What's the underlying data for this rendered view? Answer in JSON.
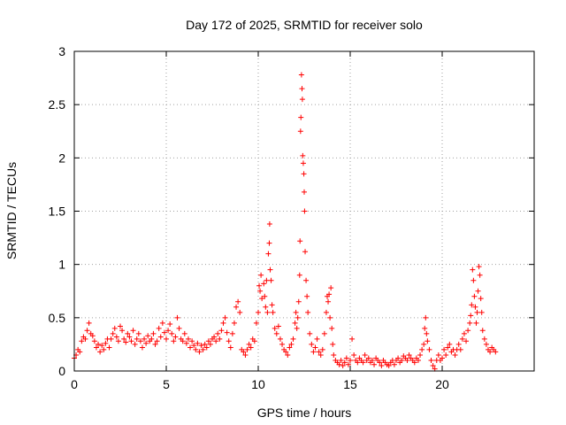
{
  "chart_data": {
    "type": "scatter",
    "title": "Day 172 of 2025, SRMTID for receiver solo",
    "xlabel": "GPS time / hours",
    "ylabel": "SRMTID / TECUs",
    "xlim": [
      0,
      25
    ],
    "ylim": [
      0,
      3
    ],
    "xticks": [
      0,
      5,
      10,
      15,
      20
    ],
    "yticks": [
      0,
      0.5,
      1,
      1.5,
      2,
      2.5,
      3
    ],
    "xtick_labels": [
      "0",
      "5",
      "10",
      "15",
      "20"
    ],
    "ytick_labels": [
      "0",
      "0.5",
      "1",
      "1.5",
      "2",
      "2.5",
      "3"
    ],
    "grid": true,
    "marker": "plus",
    "color": "#ff0000",
    "series": [
      {
        "name": "SRMTID",
        "points": [
          [
            0.0,
            0.12
          ],
          [
            0.1,
            0.15
          ],
          [
            0.2,
            0.2
          ],
          [
            0.3,
            0.18
          ],
          [
            0.4,
            0.28
          ],
          [
            0.5,
            0.32
          ],
          [
            0.6,
            0.3
          ],
          [
            0.7,
            0.38
          ],
          [
            0.8,
            0.45
          ],
          [
            0.9,
            0.35
          ],
          [
            1.0,
            0.33
          ],
          [
            1.1,
            0.28
          ],
          [
            1.2,
            0.22
          ],
          [
            1.3,
            0.25
          ],
          [
            1.4,
            0.18
          ],
          [
            1.5,
            0.24
          ],
          [
            1.6,
            0.2
          ],
          [
            1.7,
            0.26
          ],
          [
            1.8,
            0.3
          ],
          [
            1.9,
            0.22
          ],
          [
            2.0,
            0.3
          ],
          [
            2.1,
            0.35
          ],
          [
            2.2,
            0.4
          ],
          [
            2.3,
            0.32
          ],
          [
            2.4,
            0.28
          ],
          [
            2.5,
            0.42
          ],
          [
            2.6,
            0.38
          ],
          [
            2.7,
            0.3
          ],
          [
            2.8,
            0.27
          ],
          [
            2.9,
            0.35
          ],
          [
            3.0,
            0.32
          ],
          [
            3.1,
            0.28
          ],
          [
            3.2,
            0.38
          ],
          [
            3.3,
            0.25
          ],
          [
            3.4,
            0.3
          ],
          [
            3.5,
            0.35
          ],
          [
            3.6,
            0.28
          ],
          [
            3.7,
            0.22
          ],
          [
            3.8,
            0.3
          ],
          [
            3.9,
            0.26
          ],
          [
            4.0,
            0.33
          ],
          [
            4.1,
            0.28
          ],
          [
            4.2,
            0.3
          ],
          [
            4.3,
            0.35
          ],
          [
            4.4,
            0.25
          ],
          [
            4.5,
            0.28
          ],
          [
            4.6,
            0.4
          ],
          [
            4.7,
            0.32
          ],
          [
            4.8,
            0.45
          ],
          [
            4.9,
            0.36
          ],
          [
            5.0,
            0.3
          ],
          [
            5.1,
            0.38
          ],
          [
            5.2,
            0.44
          ],
          [
            5.3,
            0.35
          ],
          [
            5.4,
            0.28
          ],
          [
            5.5,
            0.32
          ],
          [
            5.6,
            0.5
          ],
          [
            5.7,
            0.4
          ],
          [
            5.8,
            0.3
          ],
          [
            5.9,
            0.28
          ],
          [
            6.0,
            0.35
          ],
          [
            6.1,
            0.26
          ],
          [
            6.2,
            0.3
          ],
          [
            6.3,
            0.22
          ],
          [
            6.4,
            0.28
          ],
          [
            6.5,
            0.24
          ],
          [
            6.6,
            0.2
          ],
          [
            6.7,
            0.26
          ],
          [
            6.8,
            0.18
          ],
          [
            6.9,
            0.24
          ],
          [
            7.0,
            0.2
          ],
          [
            7.1,
            0.25
          ],
          [
            7.2,
            0.22
          ],
          [
            7.3,
            0.28
          ],
          [
            7.4,
            0.25
          ],
          [
            7.5,
            0.3
          ],
          [
            7.6,
            0.32
          ],
          [
            7.7,
            0.28
          ],
          [
            7.8,
            0.35
          ],
          [
            7.9,
            0.3
          ],
          [
            8.0,
            0.38
          ],
          [
            8.1,
            0.45
          ],
          [
            8.2,
            0.5
          ],
          [
            8.3,
            0.36
          ],
          [
            8.4,
            0.28
          ],
          [
            8.5,
            0.22
          ],
          [
            8.6,
            0.35
          ],
          [
            8.7,
            0.45
          ],
          [
            8.8,
            0.6
          ],
          [
            8.9,
            0.65
          ],
          [
            9.0,
            0.55
          ],
          [
            9.1,
            0.2
          ],
          [
            9.2,
            0.18
          ],
          [
            9.3,
            0.15
          ],
          [
            9.4,
            0.2
          ],
          [
            9.5,
            0.25
          ],
          [
            9.6,
            0.22
          ],
          [
            9.7,
            0.3
          ],
          [
            9.8,
            0.28
          ],
          [
            9.9,
            0.45
          ],
          [
            10.0,
            0.55
          ],
          [
            10.05,
            0.8
          ],
          [
            10.1,
            0.75
          ],
          [
            10.15,
            0.9
          ],
          [
            10.2,
            0.68
          ],
          [
            10.3,
            0.82
          ],
          [
            10.35,
            0.7
          ],
          [
            10.4,
            0.6
          ],
          [
            10.45,
            0.85
          ],
          [
            10.5,
            0.55
          ],
          [
            10.55,
            1.1
          ],
          [
            10.6,
            1.2
          ],
          [
            10.62,
            1.38
          ],
          [
            10.65,
            0.95
          ],
          [
            10.7,
            0.85
          ],
          [
            10.75,
            0.62
          ],
          [
            10.8,
            0.55
          ],
          [
            10.9,
            0.4
          ],
          [
            11.0,
            0.35
          ],
          [
            11.1,
            0.42
          ],
          [
            11.2,
            0.3
          ],
          [
            11.3,
            0.25
          ],
          [
            11.4,
            0.2
          ],
          [
            11.5,
            0.18
          ],
          [
            11.6,
            0.15
          ],
          [
            11.7,
            0.22
          ],
          [
            11.8,
            0.25
          ],
          [
            11.9,
            0.3
          ],
          [
            12.0,
            0.45
          ],
          [
            12.05,
            0.55
          ],
          [
            12.1,
            0.4
          ],
          [
            12.15,
            0.5
          ],
          [
            12.2,
            0.65
          ],
          [
            12.25,
            0.9
          ],
          [
            12.27,
            1.22
          ],
          [
            12.3,
            2.25
          ],
          [
            12.32,
            2.38
          ],
          [
            12.35,
            2.78
          ],
          [
            12.38,
            2.65
          ],
          [
            12.4,
            2.55
          ],
          [
            12.42,
            2.02
          ],
          [
            12.45,
            1.95
          ],
          [
            12.48,
            1.85
          ],
          [
            12.5,
            1.68
          ],
          [
            12.52,
            1.5
          ],
          [
            12.55,
            1.12
          ],
          [
            12.6,
            0.85
          ],
          [
            12.65,
            0.7
          ],
          [
            12.7,
            0.55
          ],
          [
            12.8,
            0.35
          ],
          [
            12.9,
            0.25
          ],
          [
            13.0,
            0.18
          ],
          [
            13.1,
            0.22
          ],
          [
            13.2,
            0.3
          ],
          [
            13.3,
            0.18
          ],
          [
            13.4,
            0.15
          ],
          [
            13.5,
            0.2
          ],
          [
            13.6,
            0.35
          ],
          [
            13.7,
            0.55
          ],
          [
            13.75,
            0.7
          ],
          [
            13.8,
            0.65
          ],
          [
            13.85,
            0.72
          ],
          [
            13.9,
            0.5
          ],
          [
            13.95,
            0.78
          ],
          [
            14.0,
            0.4
          ],
          [
            14.05,
            0.25
          ],
          [
            14.1,
            0.15
          ],
          [
            14.2,
            0.1
          ],
          [
            14.3,
            0.08
          ],
          [
            14.4,
            0.06
          ],
          [
            14.5,
            0.1
          ],
          [
            14.6,
            0.05
          ],
          [
            14.7,
            0.08
          ],
          [
            14.8,
            0.12
          ],
          [
            14.9,
            0.06
          ],
          [
            15.0,
            0.1
          ],
          [
            15.1,
            0.3
          ],
          [
            15.2,
            0.15
          ],
          [
            15.3,
            0.1
          ],
          [
            15.4,
            0.08
          ],
          [
            15.5,
            0.12
          ],
          [
            15.6,
            0.1
          ],
          [
            15.7,
            0.08
          ],
          [
            15.8,
            0.15
          ],
          [
            15.9,
            0.1
          ],
          [
            16.0,
            0.12
          ],
          [
            16.1,
            0.08
          ],
          [
            16.2,
            0.1
          ],
          [
            16.3,
            0.06
          ],
          [
            16.4,
            0.12
          ],
          [
            16.5,
            0.1
          ],
          [
            16.6,
            0.08
          ],
          [
            16.7,
            0.05
          ],
          [
            16.8,
            0.1
          ],
          [
            16.9,
            0.08
          ],
          [
            17.0,
            0.06
          ],
          [
            17.1,
            0.05
          ],
          [
            17.2,
            0.08
          ],
          [
            17.3,
            0.1
          ],
          [
            17.4,
            0.06
          ],
          [
            17.5,
            0.1
          ],
          [
            17.6,
            0.12
          ],
          [
            17.7,
            0.08
          ],
          [
            17.8,
            0.1
          ],
          [
            17.9,
            0.14
          ],
          [
            18.0,
            0.12
          ],
          [
            18.1,
            0.1
          ],
          [
            18.2,
            0.15
          ],
          [
            18.3,
            0.12
          ],
          [
            18.4,
            0.1
          ],
          [
            18.5,
            0.08
          ],
          [
            18.6,
            0.12
          ],
          [
            18.7,
            0.1
          ],
          [
            18.8,
            0.15
          ],
          [
            18.9,
            0.2
          ],
          [
            19.0,
            0.25
          ],
          [
            19.05,
            0.4
          ],
          [
            19.1,
            0.5
          ],
          [
            19.15,
            0.35
          ],
          [
            19.2,
            0.28
          ],
          [
            19.3,
            0.2
          ],
          [
            19.4,
            0.1
          ],
          [
            19.5,
            0.05
          ],
          [
            19.6,
            0.02
          ],
          [
            19.7,
            0.1
          ],
          [
            19.8,
            0.15
          ],
          [
            19.9,
            0.1
          ],
          [
            20.0,
            0.12
          ],
          [
            20.1,
            0.2
          ],
          [
            20.2,
            0.15
          ],
          [
            20.3,
            0.22
          ],
          [
            20.4,
            0.25
          ],
          [
            20.5,
            0.18
          ],
          [
            20.6,
            0.2
          ],
          [
            20.7,
            0.15
          ],
          [
            20.8,
            0.2
          ],
          [
            20.9,
            0.25
          ],
          [
            21.0,
            0.2
          ],
          [
            21.1,
            0.3
          ],
          [
            21.2,
            0.35
          ],
          [
            21.3,
            0.28
          ],
          [
            21.4,
            0.38
          ],
          [
            21.5,
            0.45
          ],
          [
            21.55,
            0.52
          ],
          [
            21.6,
            0.62
          ],
          [
            21.65,
            0.95
          ],
          [
            21.7,
            0.85
          ],
          [
            21.75,
            0.7
          ],
          [
            21.8,
            0.6
          ],
          [
            21.85,
            0.45
          ],
          [
            21.9,
            0.55
          ],
          [
            21.95,
            0.75
          ],
          [
            22.0,
            0.98
          ],
          [
            22.05,
            0.9
          ],
          [
            22.1,
            0.68
          ],
          [
            22.15,
            0.55
          ],
          [
            22.2,
            0.38
          ],
          [
            22.3,
            0.3
          ],
          [
            22.4,
            0.25
          ],
          [
            22.5,
            0.2
          ],
          [
            22.6,
            0.18
          ],
          [
            22.7,
            0.22
          ],
          [
            22.8,
            0.2
          ],
          [
            22.9,
            0.18
          ]
        ]
      }
    ]
  }
}
